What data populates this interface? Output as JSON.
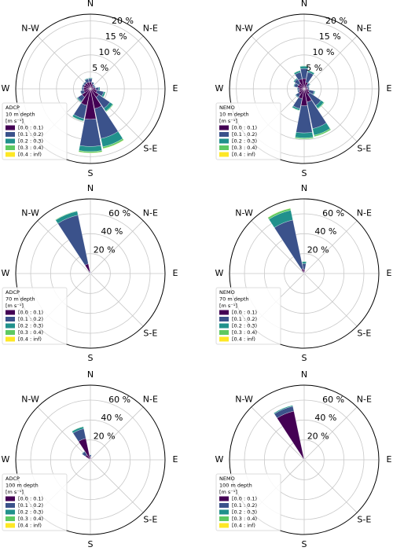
{
  "chart_data": [
    {
      "type": "windrose",
      "legend_title": [
        "ADCP",
        "10 m depth",
        "[m s⁻¹]"
      ],
      "directions": [
        "N",
        "N-E",
        "E",
        "S-E",
        "S",
        null,
        "W",
        "N-W"
      ],
      "rlim": [
        0,
        22
      ],
      "rticks": [
        {
          "value": 5,
          "label": "5 %"
        },
        {
          "value": 10,
          "label": "10 %"
        },
        {
          "value": 15,
          "label": "15 %"
        },
        {
          "value": 20,
          "label": "20 %"
        }
      ],
      "series": [
        {
          "name": "[0.0 : 0.1)",
          "color": "#440154",
          "values": [
            2,
            1.5,
            1,
            1,
            1.5,
            2,
            3,
            6,
            9,
            5,
            3,
            2,
            2,
            2,
            2,
            2
          ]
        },
        {
          "name": "[0.1 : 0.2)",
          "color": "#3b528b",
          "values": [
            1,
            0.5,
            0.5,
            0.5,
            1,
            2,
            4,
            9,
            8,
            4,
            1.5,
            1,
            0.5,
            0.5,
            0.5,
            1
          ]
        },
        {
          "name": "[0.2 : 0.3)",
          "color": "#21918c",
          "values": [
            0.2,
            0.1,
            0.1,
            0.1,
            0.3,
            0.5,
            1,
            2.5,
            1.5,
            0.7,
            0.3,
            0.1,
            0.1,
            0.1,
            0.1,
            0.2
          ]
        },
        {
          "name": "[0.3 : 0.4)",
          "color": "#5ec962",
          "values": [
            0,
            0,
            0,
            0,
            0,
            0.1,
            0.2,
            0.5,
            0.4,
            0.1,
            0,
            0,
            0,
            0,
            0,
            0
          ]
        },
        {
          "name": "[0.4 : inf)",
          "color": "#fde725",
          "values": [
            0,
            0,
            0,
            0,
            0,
            0,
            0,
            0.1,
            0.1,
            0,
            0,
            0,
            0,
            0,
            0,
            0
          ]
        }
      ]
    },
    {
      "type": "windrose",
      "legend_title": [
        "NEMO",
        "10 m depth",
        "[m s⁻¹]"
      ],
      "directions": [
        "N",
        "N-E",
        "E",
        "S-E",
        "S",
        null,
        "W",
        "N-W"
      ],
      "rlim": [
        0,
        22
      ],
      "rticks": [
        {
          "value": 5,
          "label": "5 %"
        },
        {
          "value": 10,
          "label": "10 %"
        },
        {
          "value": 15,
          "label": "15 %"
        },
        {
          "value": 20,
          "label": "20 %"
        }
      ],
      "series": [
        {
          "name": "[0.0 : 0.1)",
          "color": "#440154",
          "values": [
            3,
            2,
            1,
            1,
            1,
            1.5,
            2,
            4,
            5,
            3,
            2,
            1.5,
            1.5,
            2,
            2,
            3
          ]
        },
        {
          "name": "[0.1 : 0.2)",
          "color": "#3b528b",
          "values": [
            3,
            3,
            1,
            0.5,
            0.5,
            1.5,
            4,
            8,
            8,
            3,
            1,
            0.5,
            0.5,
            1,
            1.5,
            2
          ]
        },
        {
          "name": "[0.2 : 0.3)",
          "color": "#21918c",
          "values": [
            0.7,
            0.5,
            0.2,
            0.1,
            0.1,
            0.3,
            1,
            2,
            1.5,
            0.5,
            0.2,
            0.1,
            0.1,
            0.2,
            0.3,
            0.5
          ]
        },
        {
          "name": "[0.3 : 0.4)",
          "color": "#5ec962",
          "values": [
            0.1,
            0.1,
            0,
            0,
            0,
            0,
            0.2,
            0.4,
            0.3,
            0.1,
            0,
            0,
            0,
            0,
            0,
            0.1
          ]
        },
        {
          "name": "[0.4 : inf)",
          "color": "#fde725",
          "values": [
            0,
            0,
            0,
            0,
            0,
            0,
            0,
            0,
            0,
            0,
            0,
            0,
            0,
            0,
            0,
            0
          ]
        }
      ]
    },
    {
      "type": "windrose",
      "legend_title": [
        "ADCP",
        "70 m depth",
        "[m s⁻¹]"
      ],
      "directions": [
        "N",
        "N-E",
        "E",
        "S-E",
        "S",
        null,
        "W",
        "N-W"
      ],
      "rlim": [
        0,
        75
      ],
      "rticks": [
        {
          "value": 20,
          "label": "20 %"
        },
        {
          "value": 40,
          "label": "40 %"
        },
        {
          "value": 60,
          "label": "60 %"
        }
      ],
      "series": [
        {
          "name": "[0.0 : 0.1)",
          "color": "#440154",
          "values": [
            1,
            0.5,
            0.3,
            0.3,
            0.5,
            0.5,
            0.5,
            0.5,
            0.5,
            0.3,
            0.3,
            0.3,
            0.3,
            0.5,
            1,
            10
          ]
        },
        {
          "name": "[0.1 : 0.2)",
          "color": "#3b528b",
          "values": [
            1,
            0.3,
            0,
            0,
            0,
            0.2,
            0.3,
            0.5,
            0.3,
            0,
            0,
            0,
            0,
            0.3,
            1,
            50
          ]
        },
        {
          "name": "[0.2 : 0.3)",
          "color": "#21918c",
          "values": [
            0.2,
            0,
            0,
            0,
            0,
            0,
            0,
            0,
            0,
            0,
            0,
            0,
            0,
            0,
            0.2,
            4
          ]
        },
        {
          "name": "[0.3 : 0.4)",
          "color": "#5ec962",
          "values": [
            0,
            0,
            0,
            0,
            0,
            0,
            0,
            0,
            0,
            0,
            0,
            0,
            0,
            0,
            0,
            0.5
          ]
        },
        {
          "name": "[0.4 : inf)",
          "color": "#fde725",
          "values": [
            0,
            0,
            0,
            0,
            0,
            0,
            0,
            0,
            0,
            0,
            0,
            0,
            0,
            0,
            0,
            0
          ]
        }
      ]
    },
    {
      "type": "windrose",
      "legend_title": [
        "NEMO",
        "70 m depth",
        "[m s⁻¹]"
      ],
      "directions": [
        "N",
        "N-E",
        "E",
        "S-E",
        "S",
        null,
        "W",
        "N-W"
      ],
      "rlim": [
        0,
        75
      ],
      "rticks": [
        {
          "value": 20,
          "label": "20 %"
        },
        {
          "value": 40,
          "label": "40 %"
        },
        {
          "value": 60,
          "label": "60 %"
        }
      ],
      "series": [
        {
          "name": "[0.0 : 0.1)",
          "color": "#440154",
          "values": [
            4,
            0.5,
            0.2,
            0.2,
            0.2,
            0.2,
            0.3,
            0.3,
            0.3,
            0.2,
            0.2,
            0.2,
            0.2,
            0.3,
            0.5,
            5
          ]
        },
        {
          "name": "[0.1 : 0.2)",
          "color": "#3b528b",
          "values": [
            6,
            0.3,
            0,
            0,
            0,
            0,
            0,
            0,
            0,
            0,
            0,
            0,
            0,
            0,
            0.5,
            50
          ]
        },
        {
          "name": "[0.2 : 0.3)",
          "color": "#21918c",
          "values": [
            2,
            0,
            0,
            0,
            0,
            0,
            0,
            0,
            0,
            0,
            0,
            0,
            0,
            0,
            0,
            10
          ]
        },
        {
          "name": "[0.3 : 0.4)",
          "color": "#5ec962",
          "values": [
            0.3,
            0,
            0,
            0,
            0,
            0,
            0,
            0,
            0,
            0,
            0,
            0,
            0,
            0,
            0,
            2
          ]
        },
        {
          "name": "[0.4 : inf)",
          "color": "#fde725",
          "values": [
            0,
            0,
            0,
            0,
            0,
            0,
            0,
            0,
            0,
            0,
            0,
            0,
            0,
            0,
            0,
            0.3
          ]
        }
      ]
    },
    {
      "type": "windrose",
      "legend_title": [
        "ADCP",
        "100 m depth",
        "[m s⁻¹]"
      ],
      "directions": [
        "N",
        "N-E",
        "E",
        "S-E",
        "S",
        null,
        "W",
        "N-W"
      ],
      "rlim": [
        0,
        75
      ],
      "rticks": [
        {
          "value": 20,
          "label": "20 %"
        },
        {
          "value": 40,
          "label": "40 %"
        },
        {
          "value": 60,
          "label": "60 %"
        }
      ],
      "series": [
        {
          "name": "[0.0 : 0.1)",
          "color": "#440154",
          "values": [
            3,
            1,
            0.5,
            0.5,
            1,
            1,
            1,
            1,
            1,
            0.5,
            0.5,
            0.5,
            0.5,
            1,
            6,
            22
          ]
        },
        {
          "name": "[0.1 : 0.2)",
          "color": "#3b528b",
          "values": [
            2,
            0.5,
            0,
            0,
            0,
            0,
            0,
            0,
            0,
            0,
            0,
            0,
            0,
            0.5,
            4,
            10
          ]
        },
        {
          "name": "[0.2 : 0.3)",
          "color": "#21918c",
          "values": [
            0.3,
            0,
            0,
            0,
            0,
            0,
            0,
            0,
            0,
            0,
            0,
            0,
            0,
            0,
            0.5,
            2
          ]
        },
        {
          "name": "[0.3 : 0.4)",
          "color": "#5ec962",
          "values": [
            0,
            0,
            0,
            0,
            0,
            0,
            0,
            0,
            0,
            0,
            0,
            0,
            0,
            0,
            0,
            0.3
          ]
        },
        {
          "name": "[0.4 : inf)",
          "color": "#fde725",
          "values": [
            0,
            0,
            0,
            0,
            0,
            0,
            0,
            0,
            0,
            0,
            0,
            0,
            0,
            0,
            0,
            0
          ]
        }
      ]
    },
    {
      "type": "windrose",
      "legend_title": [
        "NEMO",
        "100 m depth",
        "[m s⁻¹]"
      ],
      "directions": [
        "N",
        "N-E",
        "E",
        "S-E",
        "S",
        null,
        "W",
        "N-W"
      ],
      "rlim": [
        0,
        75
      ],
      "rticks": [
        {
          "value": 20,
          "label": "20 %"
        },
        {
          "value": 40,
          "label": "40 %"
        },
        {
          "value": 60,
          "label": "60 %"
        }
      ],
      "series": [
        {
          "name": "[0.0 : 0.1)",
          "color": "#440154",
          "values": [
            1.5,
            0.3,
            0.2,
            0.2,
            0.3,
            0.3,
            0.3,
            0.3,
            0.3,
            0.2,
            0.2,
            0.2,
            0.2,
            0.3,
            1,
            50
          ]
        },
        {
          "name": "[0.1 : 0.2)",
          "color": "#3b528b",
          "values": [
            0.5,
            0,
            0,
            0,
            0,
            0,
            0,
            0,
            0,
            0,
            0,
            0,
            0,
            0,
            0.2,
            5
          ]
        },
        {
          "name": "[0.2 : 0.3)",
          "color": "#21918c",
          "values": [
            0,
            0,
            0,
            0,
            0,
            0,
            0,
            0,
            0,
            0,
            0,
            0,
            0,
            0,
            0,
            1
          ]
        },
        {
          "name": "[0.3 : 0.4)",
          "color": "#5ec962",
          "values": [
            0,
            0,
            0,
            0,
            0,
            0,
            0,
            0,
            0,
            0,
            0,
            0,
            0,
            0,
            0,
            0.2
          ]
        },
        {
          "name": "[0.4 : inf)",
          "color": "#fde725",
          "values": [
            0,
            0,
            0,
            0,
            0,
            0,
            0,
            0,
            0,
            0,
            0,
            0,
            0,
            0,
            0,
            0
          ]
        }
      ]
    }
  ]
}
